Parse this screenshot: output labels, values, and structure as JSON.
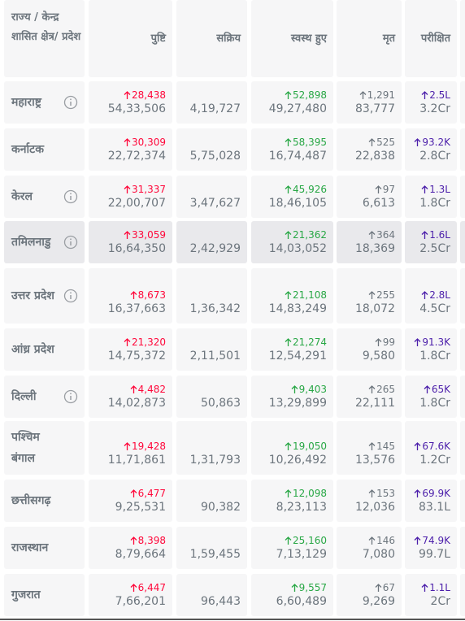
{
  "table": {
    "header": [
      "राज्य / केन्द्र शासित क्षेत्र/ प्रदेश",
      "पुष्टि",
      "सक्रिय",
      "स्वस्थ हुए",
      "मृत",
      "परीक्षित"
    ],
    "rows": [
      {
        "state": "महाराष्ट्र",
        "info": true,
        "confirmed": {
          "delta": "28,438",
          "total": "54,33,506"
        },
        "active": "4,19,727",
        "recovered": {
          "delta": "52,898",
          "total": "49,27,480"
        },
        "deceased": {
          "delta": "1,291",
          "total": "83,777"
        },
        "tested": {
          "delta": "2.5L",
          "total": "3.2Cr"
        }
      },
      {
        "state": "कर्नाटक",
        "info": false,
        "confirmed": {
          "delta": "30,309",
          "total": "22,72,374"
        },
        "active": "5,75,028",
        "recovered": {
          "delta": "58,395",
          "total": "16,74,487"
        },
        "deceased": {
          "delta": "525",
          "total": "22,838"
        },
        "tested": {
          "delta": "93.2K",
          "total": "2.8Cr"
        }
      },
      {
        "state": "केरल",
        "info": true,
        "confirmed": {
          "delta": "31,337",
          "total": "22,00,707"
        },
        "active": "3,47,627",
        "recovered": {
          "delta": "45,926",
          "total": "18,46,105"
        },
        "deceased": {
          "delta": "97",
          "total": "6,613"
        },
        "tested": {
          "delta": "1.3L",
          "total": "1.8Cr"
        }
      },
      {
        "state": "तमिलनाडु",
        "info": true,
        "confirmed": {
          "delta": "33,059",
          "total": "16,64,350"
        },
        "active": "2,42,929",
        "recovered": {
          "delta": "21,362",
          "total": "14,03,052"
        },
        "deceased": {
          "delta": "364",
          "total": "18,369"
        },
        "tested": {
          "delta": "1.6L",
          "total": "2.5Cr"
        }
      },
      {
        "state": "उत्तर प्रदेश",
        "info": true,
        "confirmed": {
          "delta": "8,673",
          "total": "16,37,663"
        },
        "active": "1,36,342",
        "recovered": {
          "delta": "21,108",
          "total": "14,83,249"
        },
        "deceased": {
          "delta": "255",
          "total": "18,072"
        },
        "tested": {
          "delta": "2.8L",
          "total": "4.5Cr"
        }
      },
      {
        "state": "आंध्र प्रदेश",
        "info": false,
        "confirmed": {
          "delta": "21,320",
          "total": "14,75,372"
        },
        "active": "2,11,501",
        "recovered": {
          "delta": "21,274",
          "total": "12,54,291"
        },
        "deceased": {
          "delta": "99",
          "total": "9,580"
        },
        "tested": {
          "delta": "91.3K",
          "total": "1.8Cr"
        }
      },
      {
        "state": "दिल्ली",
        "info": true,
        "confirmed": {
          "delta": "4,482",
          "total": "14,02,873"
        },
        "active": "50,863",
        "recovered": {
          "delta": "9,403",
          "total": "13,29,899"
        },
        "deceased": {
          "delta": "265",
          "total": "22,111"
        },
        "tested": {
          "delta": "65K",
          "total": "1.8Cr"
        }
      },
      {
        "state": "पश्चिम बंगाल",
        "info": false,
        "confirmed": {
          "delta": "19,428",
          "total": "11,71,861"
        },
        "active": "1,31,793",
        "recovered": {
          "delta": "19,050",
          "total": "10,26,492"
        },
        "deceased": {
          "delta": "145",
          "total": "13,576"
        },
        "tested": {
          "delta": "67.6K",
          "total": "1.2Cr"
        }
      },
      {
        "state": "छत्तीसगढ़",
        "info": false,
        "confirmed": {
          "delta": "6,477",
          "total": "9,25,531"
        },
        "active": "90,382",
        "recovered": {
          "delta": "12,098",
          "total": "8,23,113"
        },
        "deceased": {
          "delta": "153",
          "total": "12,036"
        },
        "tested": {
          "delta": "69.9K",
          "total": "83.1L"
        }
      },
      {
        "state": "राजस्थान",
        "info": false,
        "confirmed": {
          "delta": "8,398",
          "total": "8,79,664"
        },
        "active": "1,59,455",
        "recovered": {
          "delta": "25,160",
          "total": "7,13,129"
        },
        "deceased": {
          "delta": "146",
          "total": "7,080"
        },
        "tested": {
          "delta": "74.9K",
          "total": "99.7L"
        }
      },
      {
        "state": "गुजरात",
        "info": false,
        "confirmed": {
          "delta": "6,447",
          "total": "7,66,201"
        },
        "active": "96,443",
        "recovered": {
          "delta": "9,557",
          "total": "6,60,489"
        },
        "deceased": {
          "delta": "67",
          "total": "9,269"
        },
        "tested": {
          "delta": "1.1L",
          "total": "2Cr"
        }
      }
    ]
  }
}
